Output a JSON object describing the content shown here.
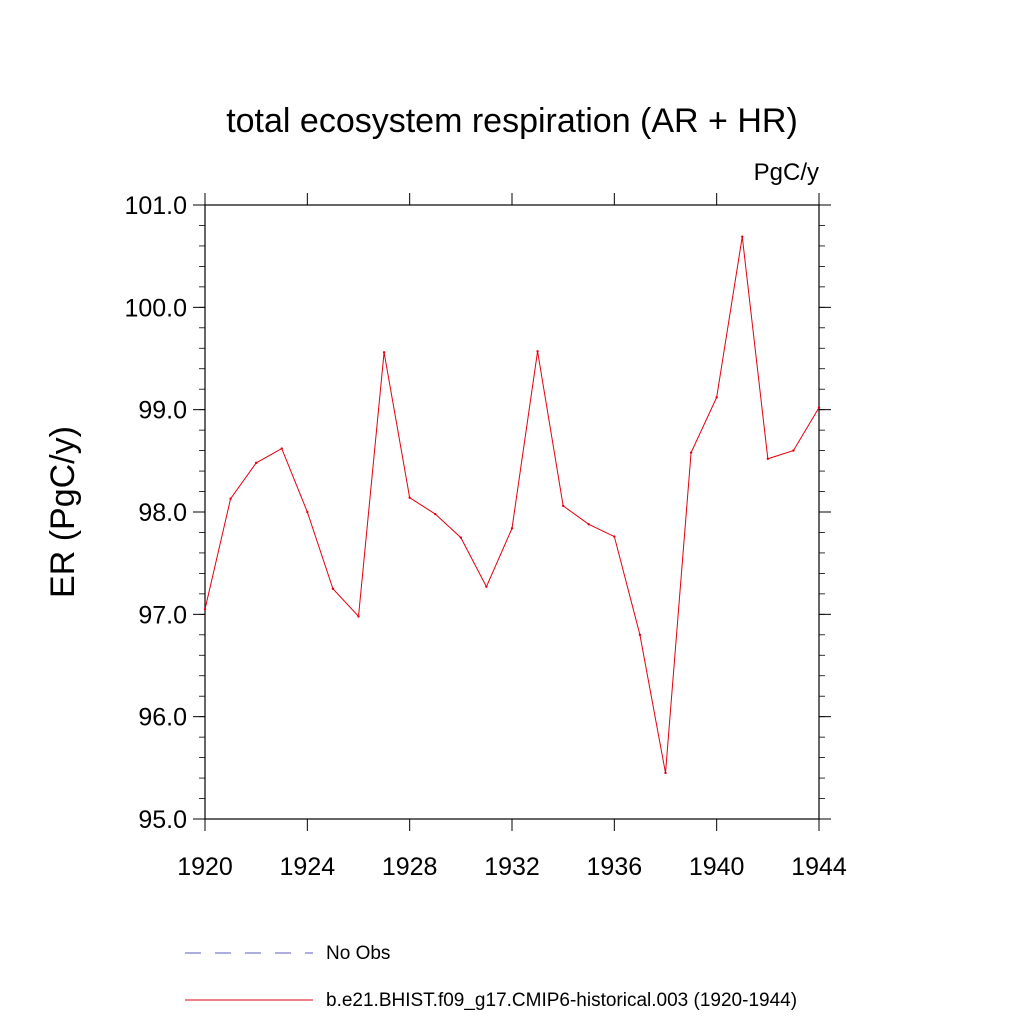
{
  "chart_data": {
    "type": "line",
    "title": "total ecosystem respiration (AR + HR)",
    "units": "PgC/y",
    "xlabel": "",
    "ylabel": "ER  (PgC/y)",
    "xlim": [
      1920,
      1944
    ],
    "ylim": [
      95.0,
      101.0
    ],
    "xticks": [
      "1920",
      "1924",
      "1928",
      "1932",
      "1936",
      "1940",
      "1944"
    ],
    "yticks": [
      "95.0",
      "96.0",
      "97.0",
      "98.0",
      "99.0",
      "100.0",
      "101.0"
    ],
    "x": [
      1920,
      1921,
      1922,
      1923,
      1924,
      1925,
      1926,
      1927,
      1928,
      1929,
      1930,
      1931,
      1932,
      1933,
      1934,
      1935,
      1936,
      1937,
      1938,
      1939,
      1940,
      1941,
      1942,
      1943,
      1944
    ],
    "series": [
      {
        "name": "b.e21.BHIST.f09_g17.CMIP6-historical.003 (1920-1944)",
        "color": "#e3000f",
        "style": "solid",
        "values": [
          97.05,
          98.13,
          98.48,
          98.62,
          98.0,
          97.25,
          96.98,
          99.56,
          98.14,
          97.98,
          97.75,
          97.27,
          97.84,
          99.57,
          98.06,
          97.88,
          97.76,
          96.8,
          95.45,
          98.58,
          99.12,
          100.69,
          98.52,
          98.6,
          99.02
        ]
      }
    ],
    "legend": [
      {
        "label": "No Obs",
        "color": "#5b5bbf",
        "style": "dashed"
      },
      {
        "label": "b.e21.BHIST.f09_g17.CMIP6-historical.003 (1920-1944)",
        "color": "#e3000f",
        "style": "solid"
      }
    ],
    "legend_position": "bottom",
    "grid": false
  }
}
